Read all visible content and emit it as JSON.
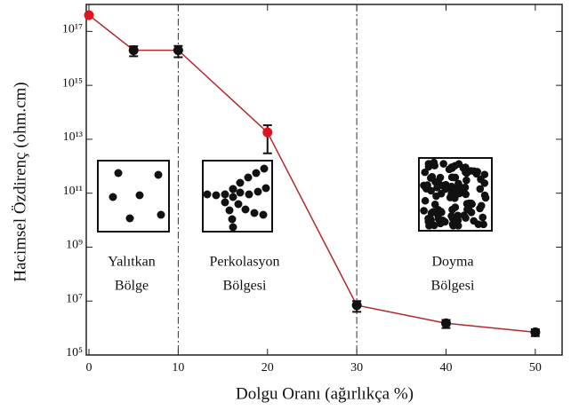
{
  "chart_data": {
    "type": "line",
    "x_label": "Dolgu Oranı (ağırlıkça %)",
    "y_label": "Hacimsel Özdirenç (ohm.cm)",
    "x": [
      0,
      5,
      10,
      20,
      30,
      40,
      50
    ],
    "series": [
      {
        "color": "#b3282d",
        "values": [
          400000000000000000,
          20000000000000000,
          20000000000000000,
          18000000000000,
          7000000,
          1500000,
          700000
        ],
        "errors": [
          null,
          8000000000000000,
          9000000000000000,
          15000000000000,
          3000000,
          500000,
          200000
        ],
        "point_colors": [
          "#e0141e",
          "#111111",
          "#111111",
          "#e0141e",
          "#111111",
          "#111111",
          "#111111"
        ]
      }
    ],
    "xlim": [
      -0.3,
      53
    ],
    "xticks": [
      0,
      10,
      20,
      30,
      40,
      50
    ],
    "ylim": [
      100000,
      1000000000000000000
    ],
    "log_y": true,
    "yticks": [
      {
        "value": 100000,
        "label": "10⁵"
      },
      {
        "value": 10000000,
        "label": "10⁷"
      },
      {
        "value": 1000000000,
        "label": "10⁹"
      },
      {
        "value": 100000000000,
        "label": "10¹¹"
      },
      {
        "value": 10000000000000,
        "label": "10¹³"
      },
      {
        "value": 1000000000000000,
        "label": "10¹⁵"
      },
      {
        "value": 100000000000000000,
        "label": "10¹⁷"
      }
    ],
    "vlines": [
      10,
      30
    ],
    "annotations": [
      "Yalıtkan",
      "Bölge",
      "Perkolasyon",
      "Bölgesi",
      "Doyma",
      "Bölgesi"
    ]
  }
}
